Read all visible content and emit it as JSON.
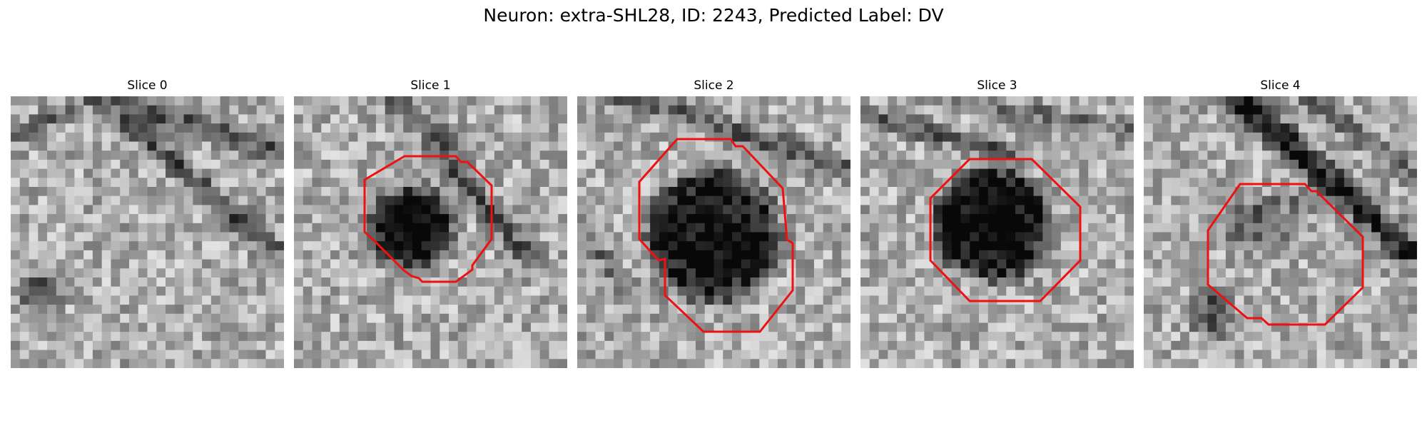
{
  "title": "Neuron: extra-SHL28, ID: 2243, Predicted Label: DV",
  "contour_color": "#ee1111",
  "slices": [
    {
      "label": "Slice 0",
      "has_contour": false,
      "seed": 11
    },
    {
      "label": "Slice 1",
      "has_contour": true,
      "seed": 23
    },
    {
      "label": "Slice 2",
      "has_contour": true,
      "seed": 37
    },
    {
      "label": "Slice 3",
      "has_contour": true,
      "seed": 41
    },
    {
      "label": "Slice 4",
      "has_contour": true,
      "seed": 53
    }
  ]
}
